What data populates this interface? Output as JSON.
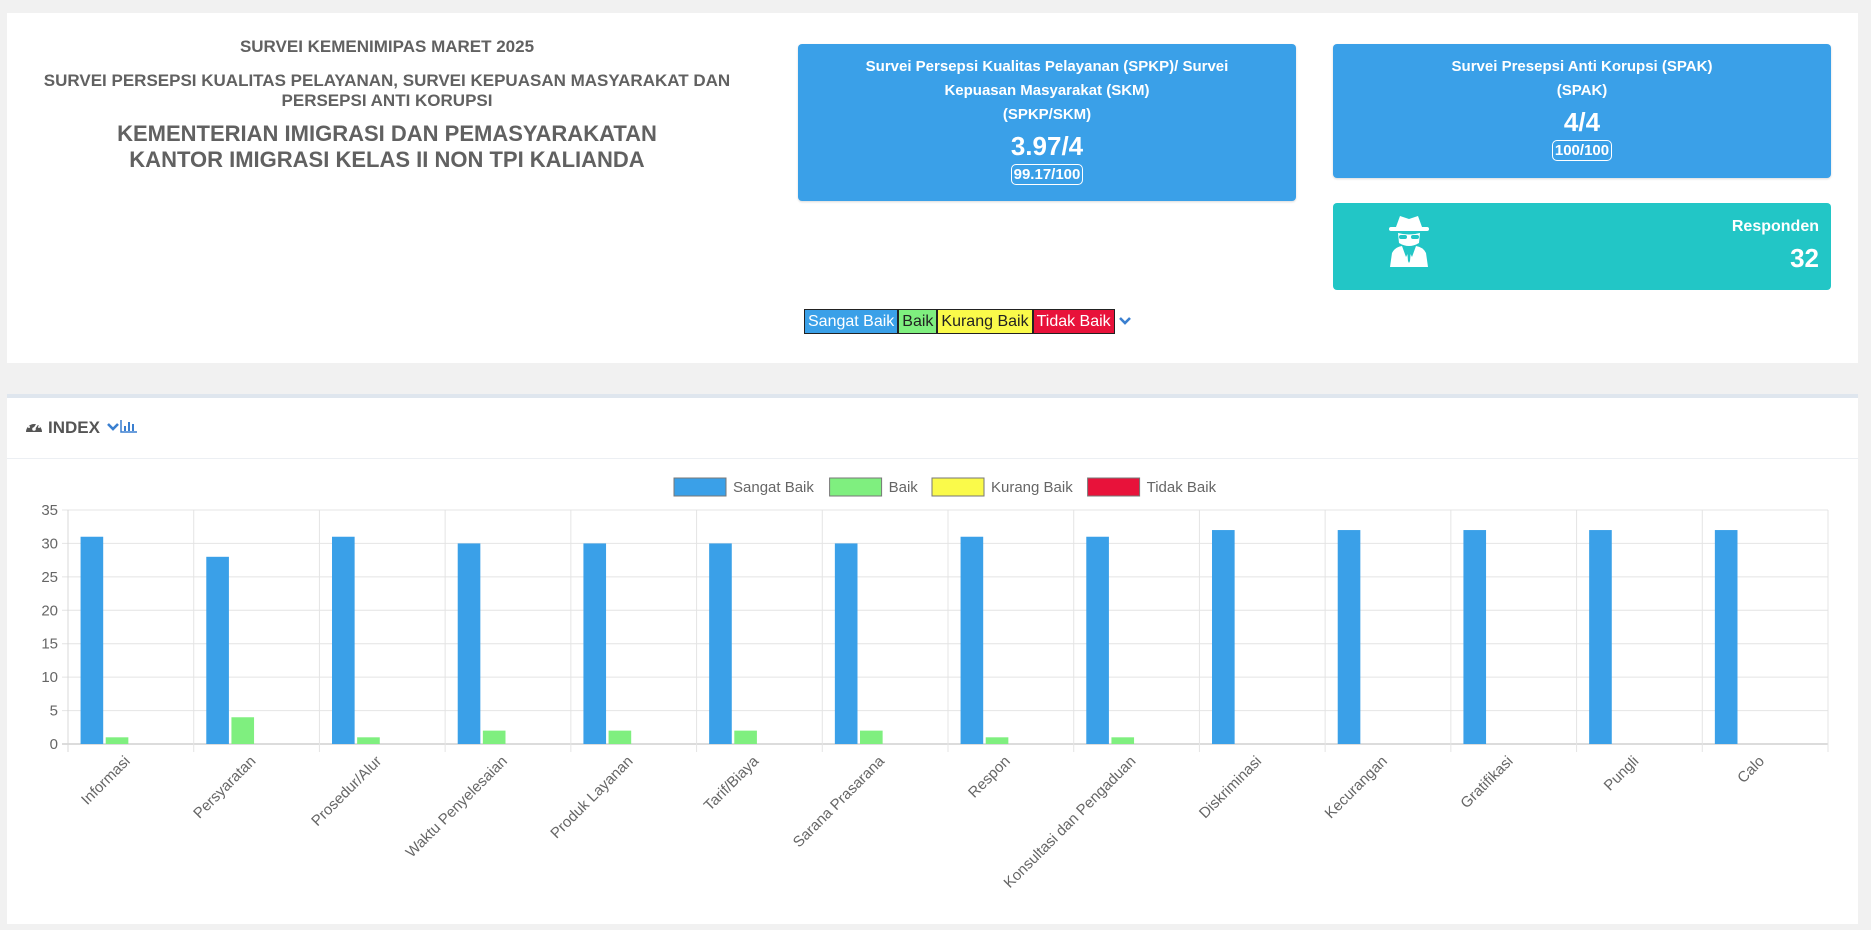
{
  "header": {
    "survey_title": "SURVEI KEMENIMIPAS MARET 2025",
    "survey_subtitle": "SURVEI PERSEPSI KUALITAS PELAYANAN, SURVEI KEPUASAN MASYARAKAT DAN PERSEPSI ANTI KORUPSI",
    "agency_line1": "KEMENTERIAN IMIGRASI DAN PEMASYARAKATAN",
    "agency_line2": "KANTOR IMIGRASI KELAS II NON TPI KALIANDA"
  },
  "cards": {
    "skm": {
      "title_line1": "Survei Persepsi Kualitas Pelayanan (SPKP)/ Survei",
      "title_line2": "Kepuasan Masyarakat (SKM)",
      "title_line3": "(SPKP/SKM)",
      "score": "3.97/4",
      "badge": "99.17/100"
    },
    "spak": {
      "title_line1": "Survei Presepsi Anti Korupsi (SPAK)",
      "title_line2": "(SPAK)",
      "score": "4/4",
      "badge": "100/100"
    },
    "respondents": {
      "label": "Responden",
      "value": "32",
      "icon": "user-secret-icon"
    }
  },
  "legend_bar": {
    "items": [
      "Sangat Baik",
      "Baik",
      "Kurang Baik",
      "Tidak Baik"
    ],
    "chevron_icon": "chevron-down-icon"
  },
  "index_panel": {
    "title": "INDEX",
    "icon": "dashboard-icon",
    "tool_icons": [
      "chevron-down-icon",
      "bar-chart-icon"
    ]
  },
  "colors": {
    "sangat_baik": "#3aa0e8",
    "baik": "#7fef7f",
    "kurang_baik": "#fafa4a",
    "tidak_baik": "#e8123a",
    "responden": "#22c6c6"
  },
  "chart_data": {
    "type": "bar",
    "categories": [
      "Informasi",
      "Persyaratan",
      "Prosedur/Alur",
      "Waktu Penyelesaian",
      "Produk Layanan",
      "Tarif/Biaya",
      "Sarana Prasarana",
      "Respon",
      "Konsultasi dan Pengaduan",
      "Diskriminasi",
      "Kecurangan",
      "Gratifikasi",
      "Pungli",
      "Calo"
    ],
    "series": [
      {
        "name": "Sangat Baik",
        "color": "#3aa0e8",
        "values": [
          31,
          28,
          31,
          30,
          30,
          30,
          30,
          31,
          31,
          32,
          32,
          32,
          32,
          32
        ]
      },
      {
        "name": "Baik",
        "color": "#7fef7f",
        "values": [
          1,
          4,
          1,
          2,
          2,
          2,
          2,
          1,
          1,
          0,
          0,
          0,
          0,
          0
        ]
      },
      {
        "name": "Kurang Baik",
        "color": "#fafa4a",
        "values": [
          0,
          0,
          0,
          0,
          0,
          0,
          0,
          0,
          0,
          0,
          0,
          0,
          0,
          0
        ]
      },
      {
        "name": "Tidak Baik",
        "color": "#e8123a",
        "values": [
          0,
          0,
          0,
          0,
          0,
          0,
          0,
          0,
          0,
          0,
          0,
          0,
          0,
          0
        ]
      }
    ],
    "ylim": [
      0,
      35
    ],
    "yticks": [
      0,
      5,
      10,
      15,
      20,
      25,
      30,
      35
    ],
    "grid": true,
    "legend": "top-center"
  }
}
